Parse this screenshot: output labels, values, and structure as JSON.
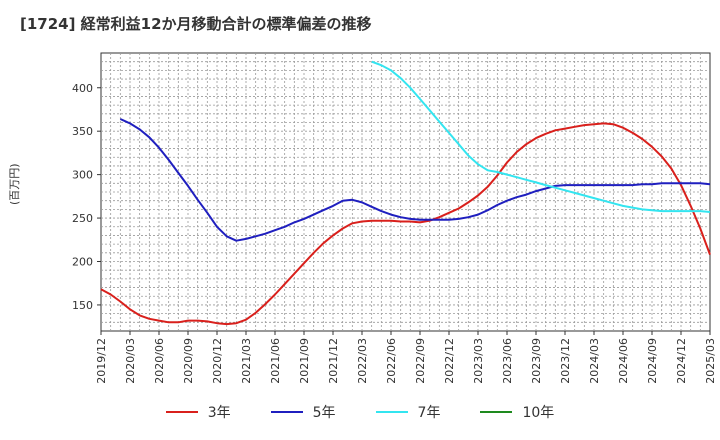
{
  "chart_data": {
    "type": "line",
    "title": "[1724]  経常利益12か月移動合計の標準偏差の推移",
    "ylabel": "(百万円)",
    "xlabel": "",
    "ylim": [
      120,
      440
    ],
    "yticks": [
      150,
      200,
      250,
      300,
      350,
      400
    ],
    "xticks": [
      "2019/12",
      "2020/03",
      "2020/06",
      "2020/09",
      "2020/12",
      "2021/03",
      "2021/06",
      "2021/09",
      "2021/12",
      "2022/03",
      "2022/06",
      "2022/09",
      "2022/12",
      "2023/03",
      "2023/06",
      "2023/09",
      "2023/12",
      "2024/03",
      "2024/06",
      "2024/09",
      "2024/12",
      "2025/03"
    ],
    "grid": true,
    "legend_position": "bottom",
    "series": [
      {
        "name": "3年",
        "color": "#d9201c",
        "points": [
          [
            0,
            168
          ],
          [
            1,
            162
          ],
          [
            2,
            154
          ],
          [
            3,
            145
          ],
          [
            4,
            138
          ],
          [
            5,
            134
          ],
          [
            6,
            132
          ],
          [
            7,
            130
          ],
          [
            8,
            130
          ],
          [
            9,
            132
          ],
          [
            10,
            132
          ],
          [
            11,
            131
          ],
          [
            12,
            129
          ],
          [
            13,
            128
          ],
          [
            14,
            129
          ],
          [
            15,
            133
          ],
          [
            16,
            141
          ],
          [
            17,
            151
          ],
          [
            18,
            162
          ],
          [
            19,
            174
          ],
          [
            20,
            186
          ],
          [
            21,
            198
          ],
          [
            22,
            210
          ],
          [
            23,
            221
          ],
          [
            24,
            230
          ],
          [
            25,
            238
          ],
          [
            26,
            244
          ],
          [
            27,
            246
          ],
          [
            28,
            247
          ],
          [
            29,
            247
          ],
          [
            30,
            247
          ],
          [
            31,
            246
          ],
          [
            32,
            246
          ],
          [
            33,
            245
          ],
          [
            34,
            247
          ],
          [
            35,
            251
          ],
          [
            36,
            256
          ],
          [
            37,
            261
          ],
          [
            38,
            268
          ],
          [
            39,
            276
          ],
          [
            40,
            286
          ],
          [
            41,
            299
          ],
          [
            42,
            314
          ],
          [
            43,
            326
          ],
          [
            44,
            335
          ],
          [
            45,
            342
          ],
          [
            46,
            347
          ],
          [
            47,
            351
          ],
          [
            48,
            353
          ],
          [
            49,
            355
          ],
          [
            50,
            357
          ],
          [
            51,
            358
          ],
          [
            52,
            359
          ],
          [
            53,
            358
          ],
          [
            54,
            354
          ],
          [
            55,
            348
          ],
          [
            56,
            341
          ],
          [
            57,
            332
          ],
          [
            58,
            321
          ],
          [
            59,
            307
          ],
          [
            60,
            288
          ],
          [
            61,
            264
          ],
          [
            62,
            238
          ],
          [
            63,
            208
          ]
        ]
      },
      {
        "name": "5年",
        "color": "#1f1fbf",
        "points": [
          [
            2,
            364
          ],
          [
            3,
            359
          ],
          [
            4,
            352
          ],
          [
            5,
            343
          ],
          [
            6,
            331
          ],
          [
            7,
            317
          ],
          [
            8,
            302
          ],
          [
            9,
            287
          ],
          [
            10,
            271
          ],
          [
            11,
            256
          ],
          [
            12,
            240
          ],
          [
            13,
            229
          ],
          [
            14,
            224
          ],
          [
            15,
            226
          ],
          [
            16,
            229
          ],
          [
            17,
            232
          ],
          [
            18,
            236
          ],
          [
            19,
            240
          ],
          [
            20,
            245
          ],
          [
            21,
            249
          ],
          [
            22,
            254
          ],
          [
            23,
            259
          ],
          [
            24,
            264
          ],
          [
            25,
            270
          ],
          [
            26,
            271
          ],
          [
            27,
            268
          ],
          [
            28,
            263
          ],
          [
            29,
            258
          ],
          [
            30,
            254
          ],
          [
            31,
            251
          ],
          [
            32,
            249
          ],
          [
            33,
            248
          ],
          [
            34,
            248
          ],
          [
            35,
            248
          ],
          [
            36,
            248
          ],
          [
            37,
            249
          ],
          [
            38,
            251
          ],
          [
            39,
            254
          ],
          [
            40,
            259
          ],
          [
            41,
            265
          ],
          [
            42,
            270
          ],
          [
            43,
            274
          ],
          [
            44,
            277
          ],
          [
            45,
            281
          ],
          [
            46,
            284
          ],
          [
            47,
            287
          ],
          [
            48,
            288
          ],
          [
            49,
            288
          ],
          [
            50,
            288
          ],
          [
            51,
            288
          ],
          [
            52,
            288
          ],
          [
            53,
            288
          ],
          [
            54,
            288
          ],
          [
            55,
            288
          ],
          [
            56,
            289
          ],
          [
            57,
            289
          ],
          [
            58,
            290
          ],
          [
            59,
            290
          ],
          [
            60,
            290
          ],
          [
            61,
            290
          ],
          [
            62,
            290
          ],
          [
            63,
            289
          ]
        ]
      },
      {
        "name": "7年",
        "color": "#33e5f0",
        "points": [
          [
            28,
            430
          ],
          [
            29,
            426
          ],
          [
            30,
            420
          ],
          [
            31,
            411
          ],
          [
            32,
            400
          ],
          [
            33,
            387
          ],
          [
            34,
            374
          ],
          [
            35,
            361
          ],
          [
            36,
            348
          ],
          [
            37,
            335
          ],
          [
            38,
            322
          ],
          [
            39,
            312
          ],
          [
            40,
            305
          ],
          [
            41,
            303
          ],
          [
            42,
            300
          ],
          [
            43,
            297
          ],
          [
            44,
            294
          ],
          [
            45,
            291
          ],
          [
            46,
            288
          ],
          [
            47,
            285
          ],
          [
            48,
            282
          ],
          [
            49,
            279
          ],
          [
            50,
            276
          ],
          [
            51,
            273
          ],
          [
            52,
            270
          ],
          [
            53,
            267
          ],
          [
            54,
            264
          ],
          [
            55,
            262
          ],
          [
            56,
            260
          ],
          [
            57,
            259
          ],
          [
            58,
            258
          ],
          [
            59,
            258
          ],
          [
            60,
            258
          ],
          [
            61,
            258
          ],
          [
            62,
            258
          ],
          [
            63,
            257
          ]
        ]
      },
      {
        "name": "10年",
        "color": "#1e8a1e",
        "points": []
      }
    ]
  }
}
